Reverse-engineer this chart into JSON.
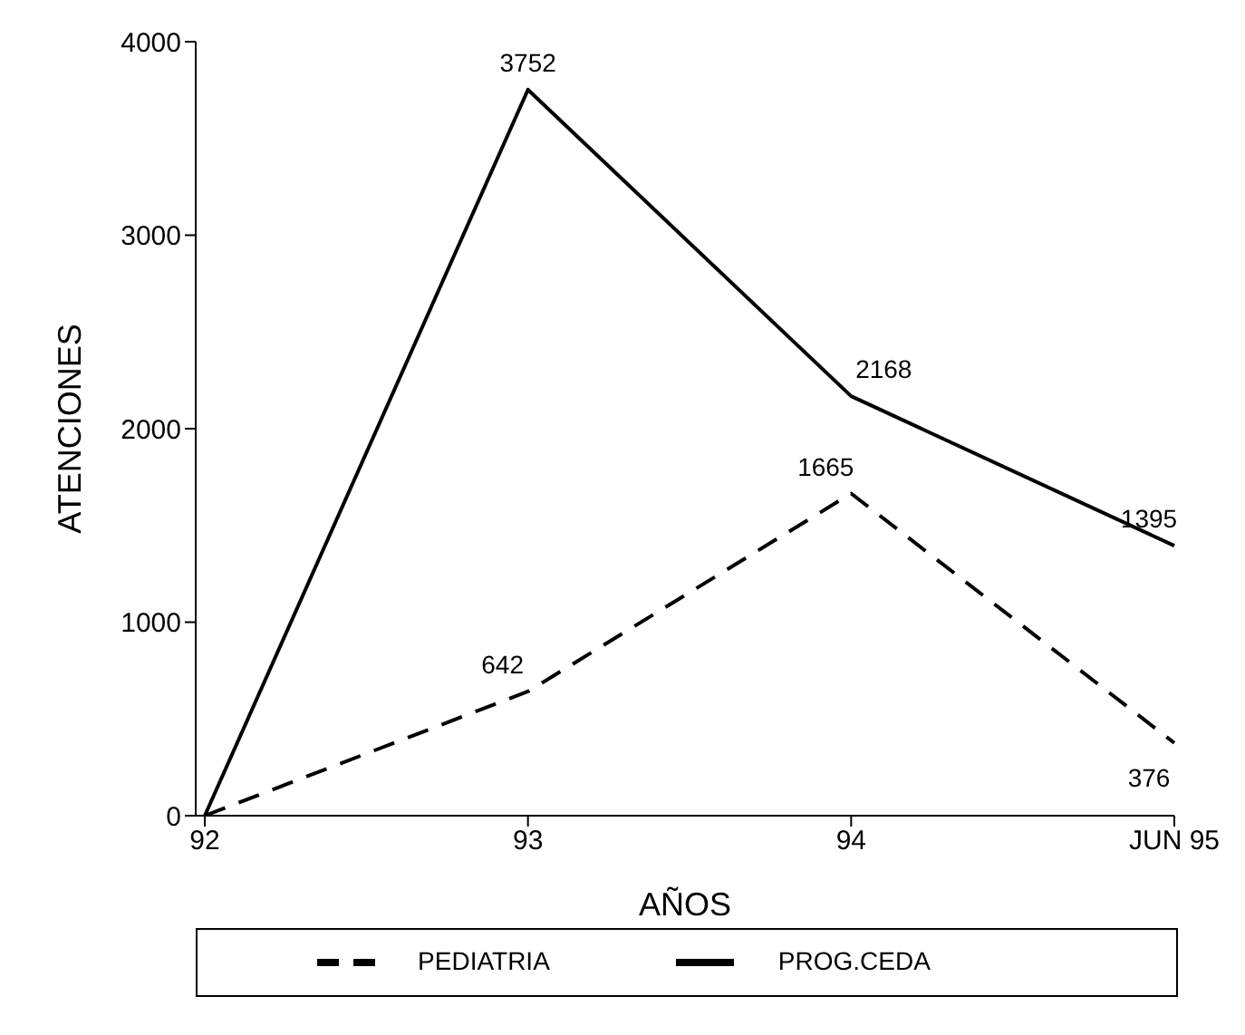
{
  "chart_data": {
    "type": "line",
    "xlabel": "AÑOS",
    "ylabel": "ATENCIONES",
    "categories": [
      "92",
      "93",
      "94",
      "JUN 95"
    ],
    "series": [
      {
        "name": "PEDIATRIA",
        "color": "#000000",
        "line_style": "dashed",
        "values": [
          0,
          642,
          1665,
          376
        ],
        "value_labels": [
          null,
          "642",
          "1665",
          "376"
        ]
      },
      {
        "name": "PROG.CEDA",
        "color": "#000000",
        "line_style": "solid",
        "values": [
          0,
          3752,
          2168,
          1395
        ],
        "value_labels": [
          null,
          "3752",
          "2168",
          "1395"
        ]
      }
    ],
    "ylim": [
      0,
      4000
    ],
    "yticks": [
      0,
      1000,
      2000,
      3000,
      4000
    ],
    "legend": "bottom",
    "marker": "none"
  }
}
